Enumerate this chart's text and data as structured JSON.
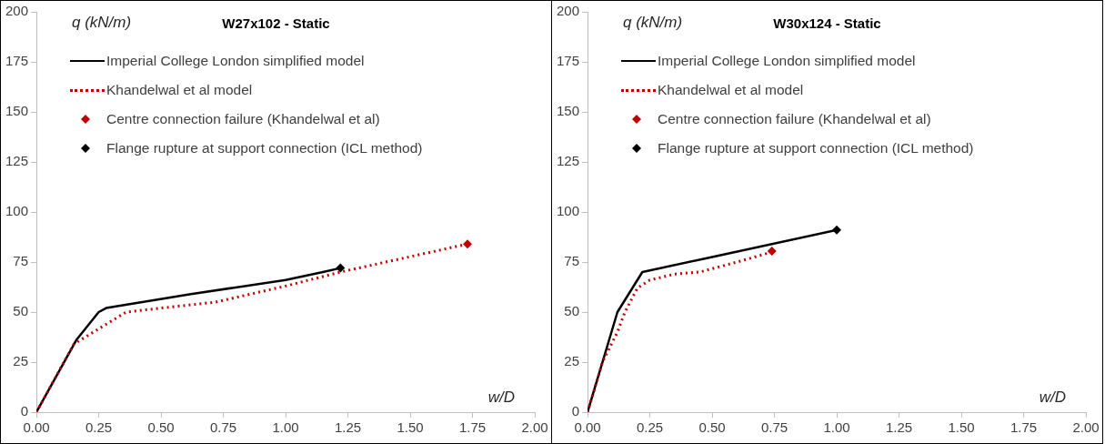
{
  "chart_data": [
    {
      "type": "line",
      "title": "W27x102 - Static",
      "xlabel": "w/D",
      "ylabel": "q (kN/m)",
      "xlim": [
        0,
        2
      ],
      "ylim": [
        0,
        200
      ],
      "xticks": [
        {
          "value": 0,
          "label": "0.00"
        },
        {
          "value": 0.25,
          "label": "0.25"
        },
        {
          "value": 0.5,
          "label": "0.50"
        },
        {
          "value": 0.75,
          "label": "0.75"
        },
        {
          "value": 1,
          "label": "1.00"
        },
        {
          "value": 1.25,
          "label": "1.25"
        },
        {
          "value": 1.5,
          "label": "1.50"
        },
        {
          "value": 1.75,
          "label": "1.75"
        },
        {
          "value": 2,
          "label": "2.00"
        }
      ],
      "yticks": [
        0,
        25,
        50,
        75,
        100,
        125,
        150,
        175,
        200
      ],
      "grid": false,
      "legend": "top left",
      "series": [
        {
          "name": "Imperial College London simplified model",
          "color": "#000000",
          "line_style": "solid",
          "marker": "none",
          "x": [
            0,
            0.16,
            0.25,
            0.28,
            0.62,
            1.0,
            1.15,
            1.22
          ],
          "values": [
            0,
            36,
            50,
            52,
            59,
            66,
            70,
            72
          ]
        },
        {
          "name": "Khandelwal et al model",
          "color": "#c00000",
          "line_style": "dotted",
          "marker": "none",
          "x": [
            0,
            0.15,
            0.36,
            0.5,
            0.72,
            1.0,
            1.22,
            1.73
          ],
          "values": [
            0,
            34,
            50,
            52,
            55,
            63,
            70,
            84
          ]
        },
        {
          "name": "Centre connection failure (Khandelwal et al)",
          "type": "scatter",
          "color": "#c00000",
          "marker": "diamond",
          "x": [
            1.73
          ],
          "values": [
            84
          ]
        },
        {
          "name": "Flange rupture at support connection (ICL method)",
          "type": "scatter",
          "color": "#000000",
          "marker": "diamond",
          "x": [
            1.22
          ],
          "values": [
            72
          ]
        }
      ]
    },
    {
      "type": "line",
      "title": "W30x124 - Static",
      "xlabel": "w/D",
      "ylabel": "q (kN/m)",
      "xlim": [
        0,
        2
      ],
      "ylim": [
        0,
        200
      ],
      "xticks": [
        {
          "value": 0,
          "label": "0.00"
        },
        {
          "value": 0.25,
          "label": "0.25"
        },
        {
          "value": 0.5,
          "label": "0.50"
        },
        {
          "value": 0.75,
          "label": "0.75"
        },
        {
          "value": 1,
          "label": "1.00"
        },
        {
          "value": 1.25,
          "label": "1.25"
        },
        {
          "value": 1.5,
          "label": "1.50"
        },
        {
          "value": 1.75,
          "label": "1.75"
        },
        {
          "value": 2,
          "label": "2.00"
        }
      ],
      "yticks": [
        0,
        25,
        50,
        75,
        100,
        125,
        150,
        175,
        200
      ],
      "grid": false,
      "legend": "top left",
      "series": [
        {
          "name": "Imperial College London simplified model",
          "color": "#000000",
          "line_style": "solid",
          "marker": "none",
          "x": [
            0,
            0.12,
            0.22,
            0.5,
            1.0
          ],
          "values": [
            0,
            50,
            70,
            77.5,
            91
          ]
        },
        {
          "name": "Khandelwal et al model",
          "color": "#c00000",
          "line_style": "dotted",
          "marker": "none",
          "x": [
            0,
            0.06,
            0.12,
            0.15,
            0.2,
            0.25,
            0.35,
            0.45,
            0.6,
            0.74
          ],
          "values": [
            0,
            25,
            40,
            50,
            62,
            66,
            69,
            70,
            75,
            80
          ]
        },
        {
          "name": "Centre connection failure (Khandelwal et al)",
          "type": "scatter",
          "color": "#c00000",
          "marker": "diamond",
          "x": [
            0.74
          ],
          "values": [
            80.5
          ]
        },
        {
          "name": "Flange rupture at support connection (ICL method)",
          "type": "scatter",
          "color": "#000000",
          "marker": "diamond",
          "x": [
            1.0
          ],
          "values": [
            91
          ]
        }
      ]
    }
  ]
}
